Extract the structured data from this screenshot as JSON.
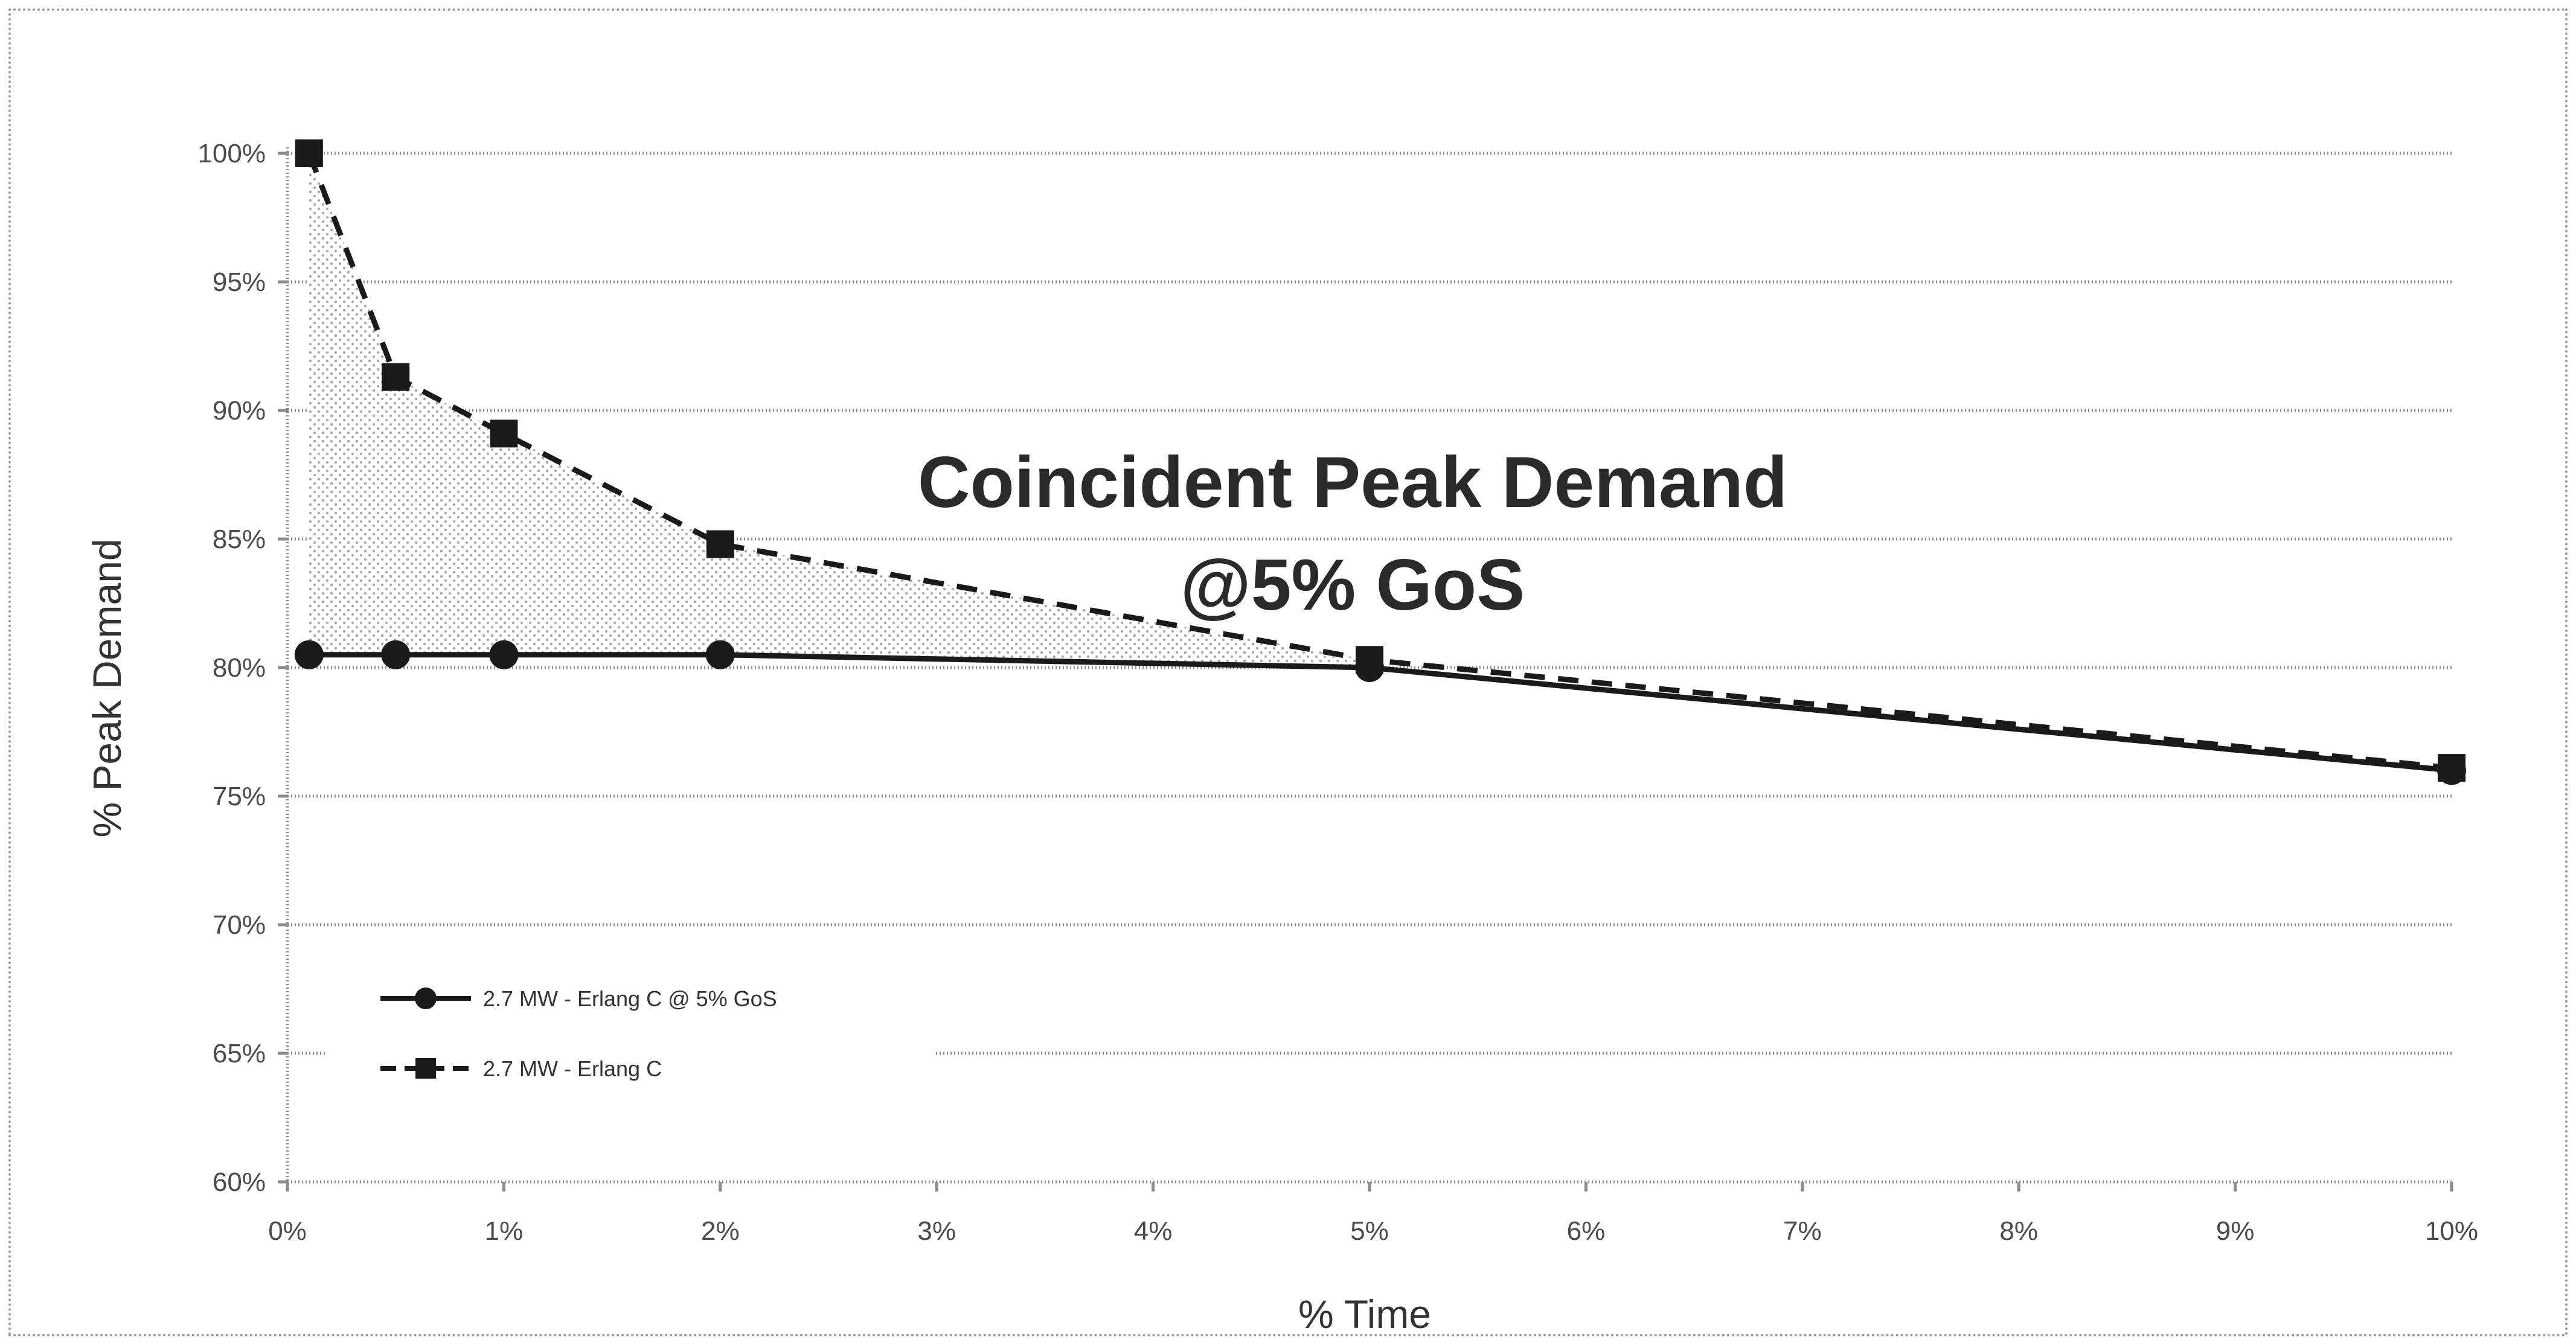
{
  "chart_data": {
    "type": "line",
    "title": "",
    "xlabel": "% Time",
    "ylabel": "% Peak Demand",
    "x_ticks": [
      "0%",
      "1%",
      "2%",
      "3%",
      "4%",
      "5%",
      "6%",
      "7%",
      "8%",
      "9%",
      "10%"
    ],
    "y_ticks": [
      "60%",
      "65%",
      "70%",
      "75%",
      "80%",
      "85%",
      "90%",
      "95%",
      "100%"
    ],
    "xlim": [
      0,
      10
    ],
    "ylim": [
      60,
      100
    ],
    "grid": true,
    "legend_position": "bottom-left",
    "annotation": [
      "Coincident Peak Demand",
      "@5% GoS"
    ],
    "shaded_region": "between series",
    "series": [
      {
        "name": "2.7 MW - Erlang C @ 5% GoS",
        "line_style": "solid",
        "marker": "circle",
        "color": "#1a1a1a",
        "x": [
          0.1,
          0.5,
          1,
          2,
          5,
          10
        ],
        "y": [
          80.5,
          80.5,
          80.5,
          80.5,
          80,
          76
        ]
      },
      {
        "name": "2.7 MW - Erlang C",
        "line_style": "dashed",
        "marker": "square",
        "color": "#1a1a1a",
        "x": [
          0.1,
          0.5,
          1,
          2,
          5,
          10
        ],
        "y": [
          100,
          91.3,
          89.1,
          84.8,
          80.3,
          76.1
        ]
      }
    ],
    "colors": {
      "line": "#1a1a1a",
      "grid": "#8c8c8c",
      "shade": "#b5b5b5"
    }
  }
}
